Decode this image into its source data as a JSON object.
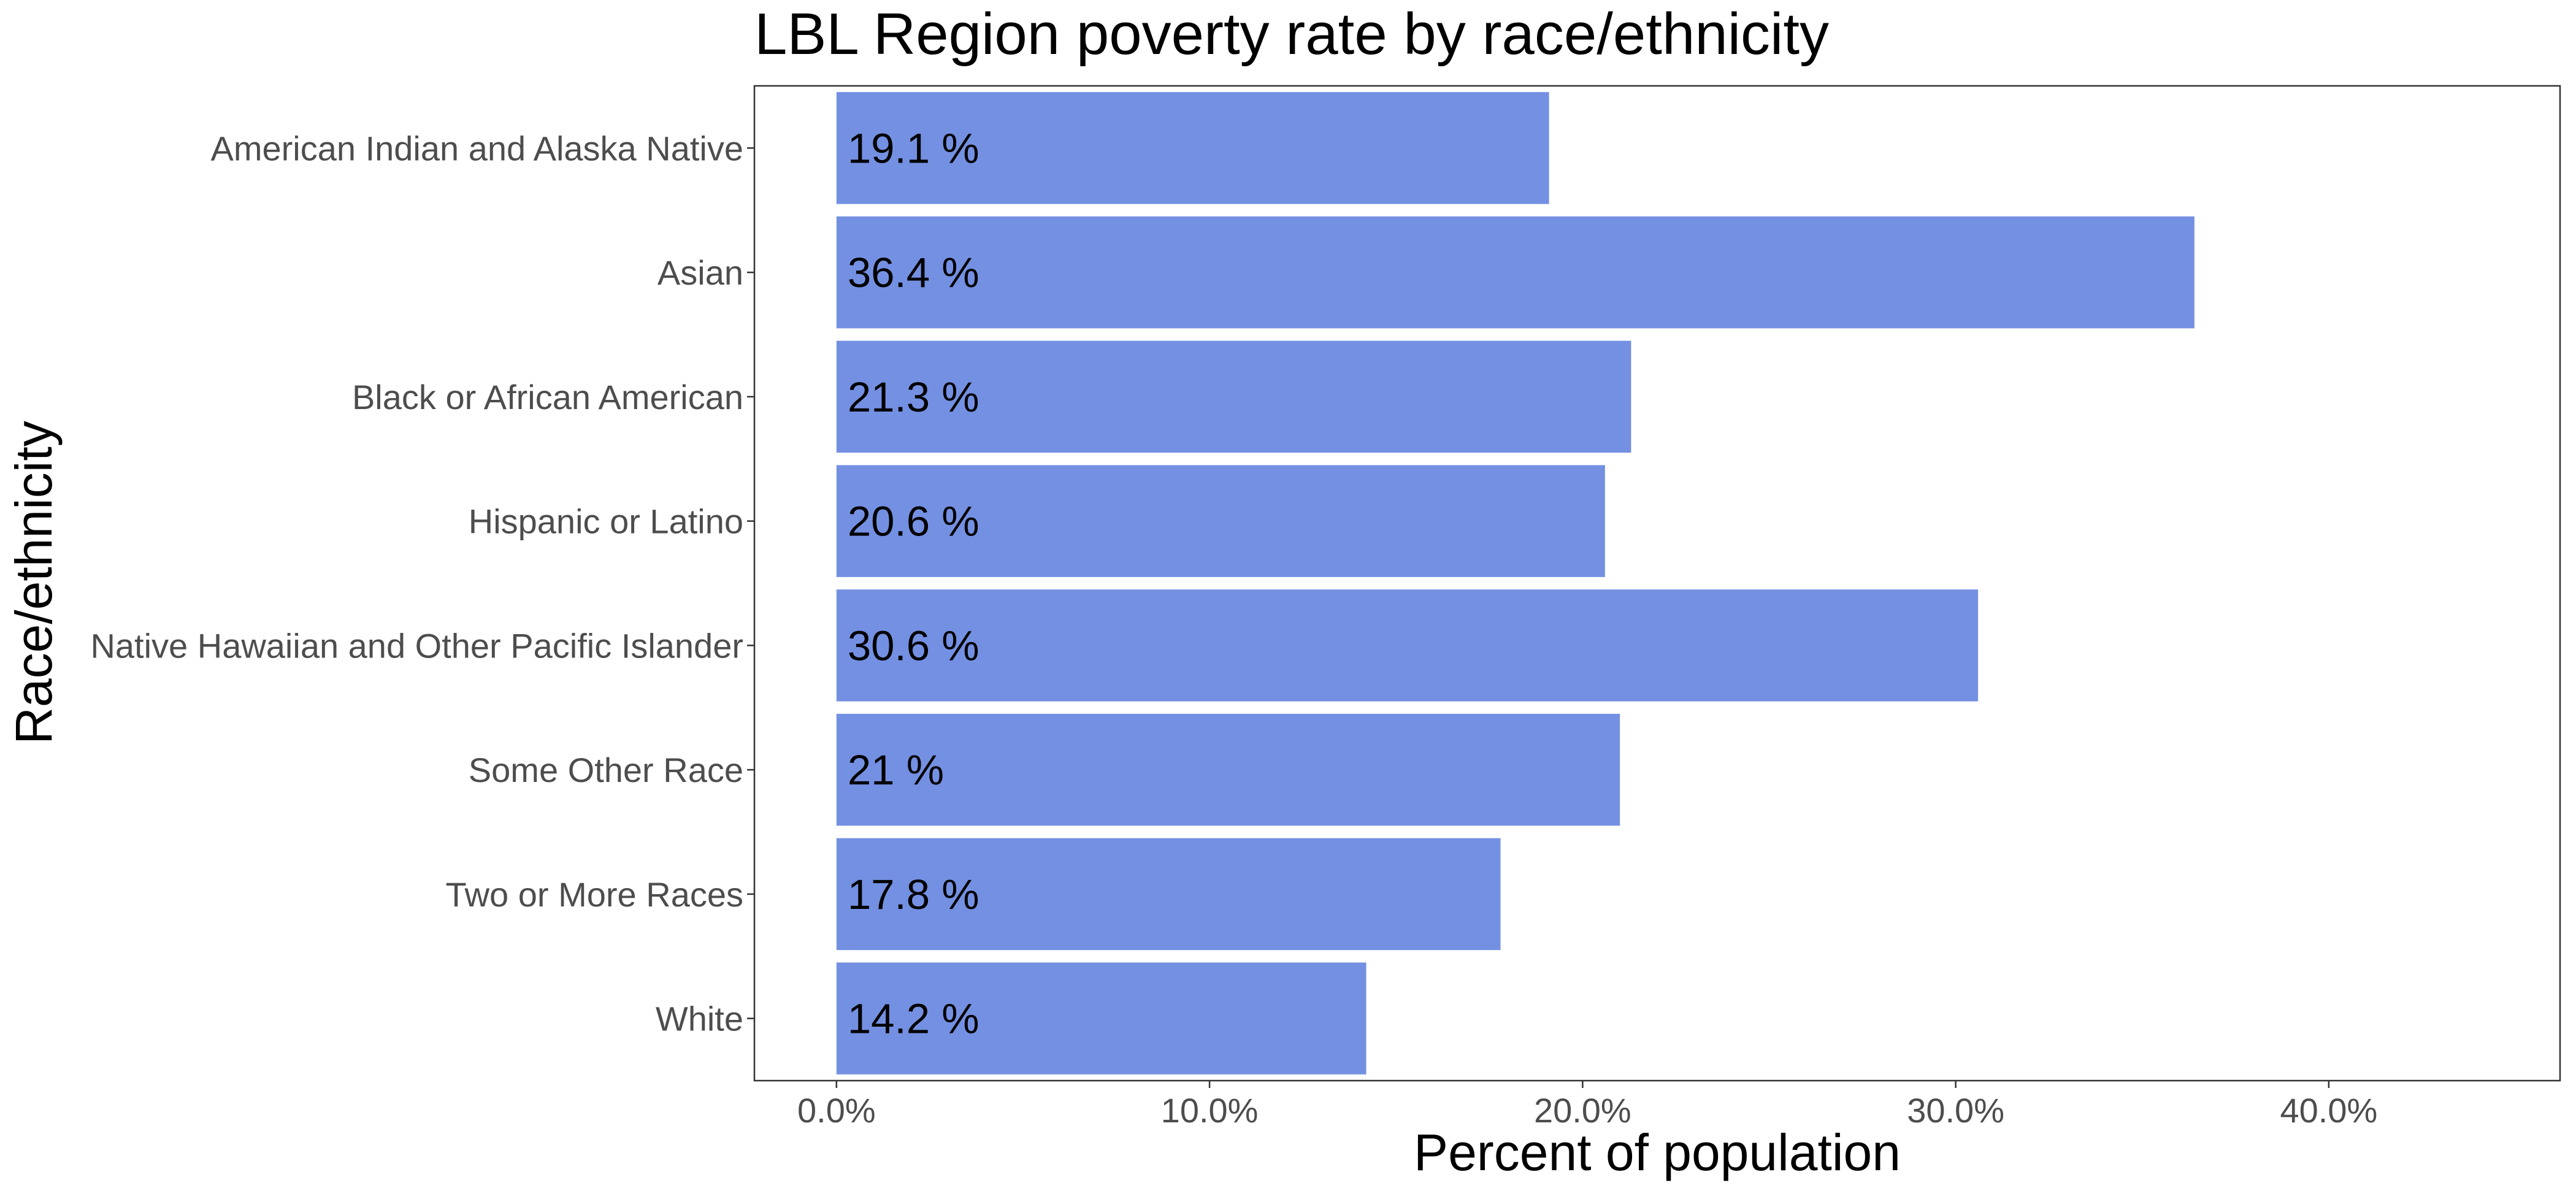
{
  "chart_data": {
    "type": "bar",
    "orientation": "horizontal",
    "title": "LBL Region poverty rate by race/ethnicity",
    "xlabel": "Percent of population",
    "ylabel": "Race/ethnicity",
    "categories": [
      "American Indian and Alaska Native",
      "Asian",
      "Black or African American",
      "Hispanic or Latino",
      "Native Hawaiian and Other Pacific Islander",
      "Some Other Race",
      "Two or More Races",
      "White"
    ],
    "values": [
      19.1,
      36.4,
      21.3,
      20.6,
      30.6,
      21.0,
      17.8,
      14.2
    ],
    "data_labels": [
      "19.1 %",
      "36.4 %",
      "21.3 %",
      "20.6 %",
      "30.6 %",
      "21 %",
      "17.8 %",
      "14.2 %"
    ],
    "x_ticks": [
      0,
      10,
      20,
      30,
      40
    ],
    "x_tick_labels": [
      "0.0%",
      "10.0%",
      "20.0%",
      "30.0%",
      "40.0%"
    ],
    "xlim": [
      -2.2,
      46.2
    ],
    "bar_color": "#7490E2",
    "grid": false,
    "legend": "none"
  }
}
